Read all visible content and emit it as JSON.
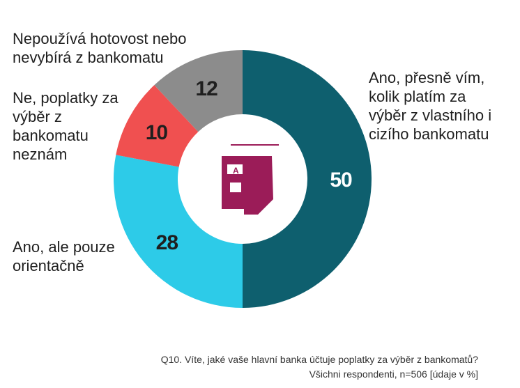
{
  "chart_data": {
    "type": "pie",
    "variant": "donut",
    "categories": [
      "Ano, přesně vím, kolik platím za výběr z vlastního i cizího bankomatu",
      "Ano, ale pouze orientačně",
      "Ne, poplatky za výběr z bankomatu neznám",
      "Nepoužívá hotovost nebo nevybírá z bankomatu"
    ],
    "values": [
      50,
      28,
      10,
      12
    ],
    "colors": [
      "#0e5f6e",
      "#2dcbe8",
      "#f05050",
      "#8c8c8c"
    ],
    "value_label_colors": [
      "#ffffff",
      "#1f1f1f",
      "#1f1f1f",
      "#1f1f1f"
    ],
    "center_icon": "atm-icon",
    "center_icon_color": "#9b1c58"
  },
  "labels": {
    "slice_0": "Ano, přesně vím,\nkolik platím za\nvýběr z vlastního i\ncizího bankomatu",
    "slice_1": "Ano, ale pouze\norientačně",
    "slice_2": "Ne, poplatky za\nvýběr z\nbankomatu\nneznám",
    "slice_3": "Nepoužívá hotovost nebo\nnevybírá z bankomatu"
  },
  "footnote": {
    "line1": "Q10. Víte, jaké vaše hlavní banka účtuje poplatky za výběr z bankomatů?",
    "line2": "Všichni respondenti, n=506 [údaje v %]"
  }
}
